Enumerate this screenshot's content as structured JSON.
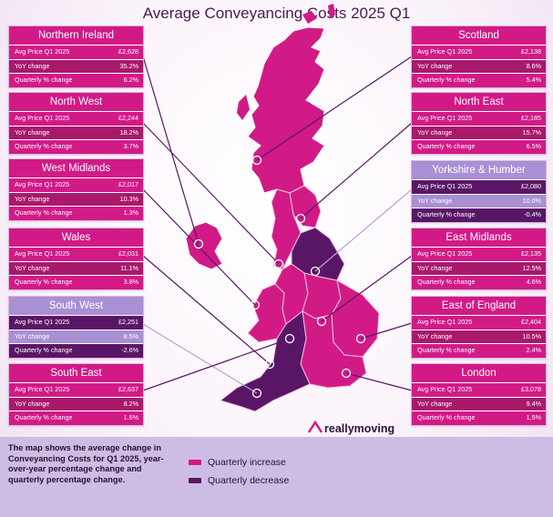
{
  "title": "Average Conveyancing Costs 2025 Q1",
  "colors": {
    "increase": "#d21a87",
    "decrease": "#5a1666",
    "header_decrease": "#a98fd4",
    "legend_bg": "#cdbde4"
  },
  "row_labels": {
    "avg": "Avg Price Q1 2025",
    "yoy": "YoY change",
    "qtr": "Quarterly % change"
  },
  "regions": [
    {
      "name": "Northern Ireland",
      "avg": "£2,628",
      "yoy": "35.2%",
      "qtr": "6.2%",
      "trend": "increase"
    },
    {
      "name": "North West",
      "avg": "£2,244",
      "yoy": "18.2%",
      "qtr": "3.7%",
      "trend": "increase"
    },
    {
      "name": "West Midlands",
      "avg": "£2,017",
      "yoy": "10.3%",
      "qtr": "1.3%",
      "trend": "increase"
    },
    {
      "name": "Wales",
      "avg": "£2,031",
      "yoy": "11.1%",
      "qtr": "3.8%",
      "trend": "increase"
    },
    {
      "name": "South West",
      "avg": "£2,251",
      "yoy": "8.5%",
      "qtr": "-2.6%",
      "trend": "decrease"
    },
    {
      "name": "South East",
      "avg": "£2,637",
      "yoy": "8.2%",
      "qtr": "1.6%",
      "trend": "increase"
    },
    {
      "name": "Scotland",
      "avg": "£2,138",
      "yoy": "8.6%",
      "qtr": "5.4%",
      "trend": "increase"
    },
    {
      "name": "North East",
      "avg": "£2,185",
      "yoy": "15.7%",
      "qtr": "6.5%",
      "trend": "increase"
    },
    {
      "name": "Yorkshire & Humber",
      "avg": "£2,080",
      "yoy": "10.0%",
      "qtr": "-0.4%",
      "trend": "decrease"
    },
    {
      "name": "East Midlands",
      "avg": "£2,135",
      "yoy": "12.5%",
      "qtr": "4.6%",
      "trend": "increase"
    },
    {
      "name": "East of England",
      "avg": "£2,404",
      "yoy": "10.5%",
      "qtr": "2.4%",
      "trend": "increase"
    },
    {
      "name": "London",
      "avg": "£3,078",
      "yoy": "9.4%",
      "qtr": "1.5%",
      "trend": "increase"
    }
  ],
  "legend": {
    "description": "The map shows the average change in Conveyancing Costs for Q1 2025, year-over-year percentage change and quarterly percentage change.",
    "increase_label": "Quarterly  increase",
    "decrease_label": "Quarterly decrease"
  },
  "brand": "reallymoving"
}
